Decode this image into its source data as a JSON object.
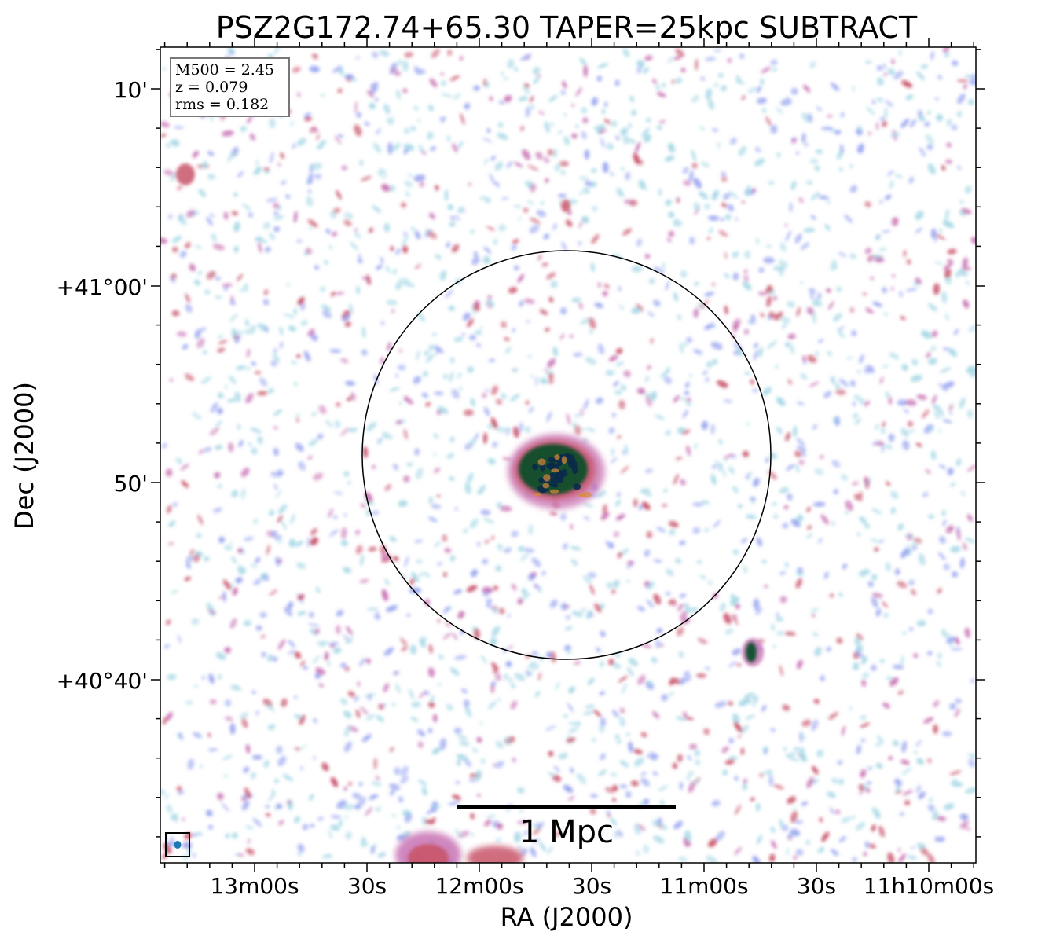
{
  "title": "PSZ2G172.74+65.30 TAPER=25kpc SUBTRACT",
  "xlabel": "RA (J2000)",
  "ylabel": "Dec (J2000)",
  "x_ticks": [
    "13m00s",
    "30s",
    "12m00s",
    "30s",
    "11m00s",
    "30s",
    "11h10m00s"
  ],
  "y_ticks": [
    "10'",
    "+41°00'",
    "50'",
    "+40°40'"
  ],
  "info": {
    "m500": "M500 = 2.45",
    "z": "z = 0.079",
    "rms": "rms = 0.182"
  },
  "scalebar_label": "1 Mpc",
  "colors": {
    "faint": "#a8d8e6",
    "low": "#9aa6f0",
    "mid": "#c873b4",
    "high": "#c8546a",
    "peak": "#0f4d2a",
    "core": "#0a2a4a",
    "frame": "#000000"
  }
}
